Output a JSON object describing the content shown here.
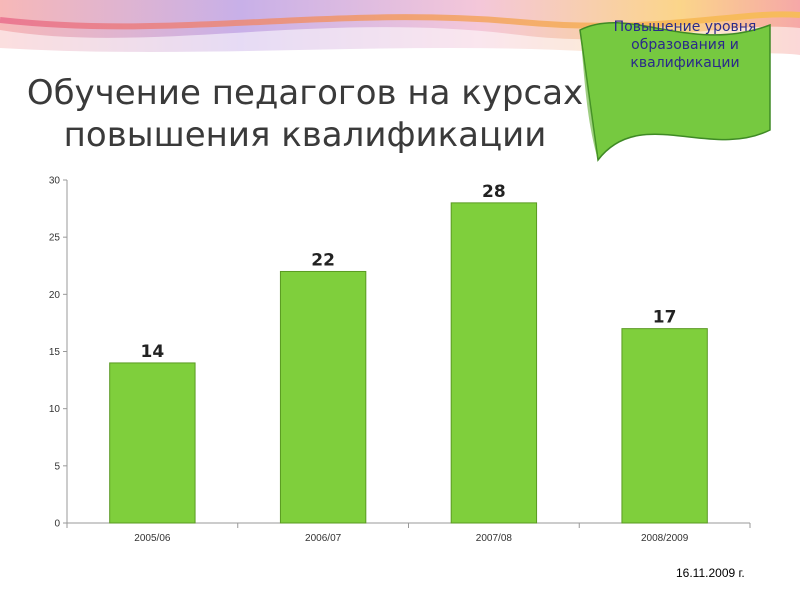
{
  "slide": {
    "title": "Обучение педагогов на курсах повышения квалификации",
    "badge": "Повышение уровня образования и квалификации",
    "date": "16.11.2009 г."
  },
  "colors": {
    "bar_fill": "#7fcf3c",
    "bar_stroke": "#5a9a22",
    "flag_fill": "#76c940",
    "flag_text": "#2a2a8a",
    "title_text": "#3a3a3a",
    "axis": "#999999"
  },
  "chart_data": {
    "type": "bar",
    "title": "",
    "xlabel": "",
    "ylabel": "",
    "categories": [
      "2005/06",
      "2006/07",
      "2007/08",
      "2008/2009"
    ],
    "values": [
      14,
      22,
      28,
      17
    ],
    "ylim": [
      0,
      30
    ],
    "yticks": [
      0,
      5,
      10,
      15,
      20,
      25,
      30
    ],
    "grid": false,
    "legend": "none",
    "data_labels": true
  }
}
